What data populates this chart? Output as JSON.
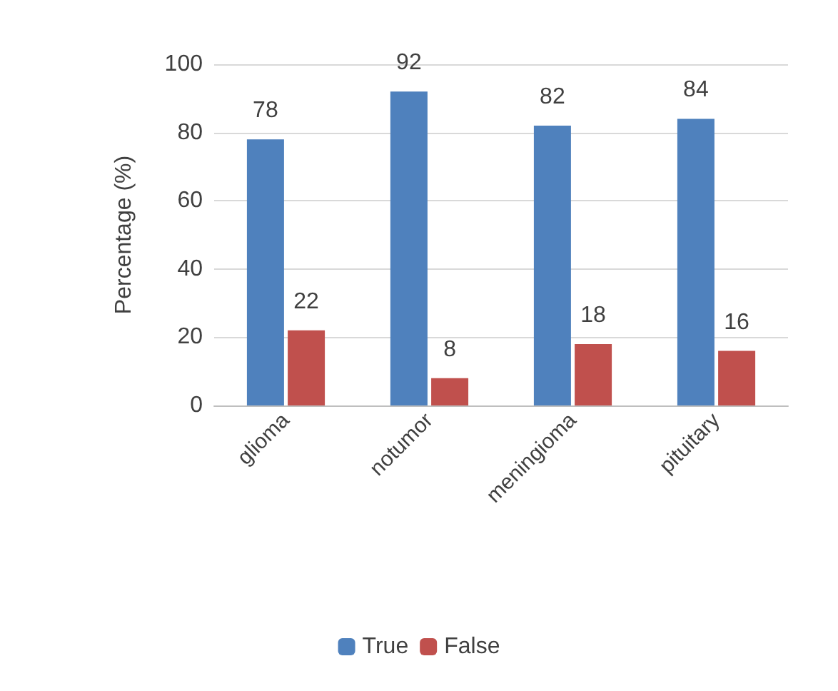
{
  "chart_data": {
    "type": "bar",
    "ylabel": "Percentage (%)",
    "categories": [
      "glioma",
      "notumor",
      "meningioma",
      "pituitary"
    ],
    "series": [
      {
        "name": "True",
        "color": "#4f81bd",
        "values": [
          78,
          92,
          82,
          84
        ]
      },
      {
        "name": "False",
        "color": "#c0504d",
        "values": [
          22,
          8,
          18,
          16
        ]
      }
    ],
    "ylim": [
      0,
      100
    ],
    "yticks": [
      0,
      20,
      40,
      60,
      80,
      100
    ],
    "grid": "y",
    "legend": "bottom",
    "data_labels": true
  }
}
